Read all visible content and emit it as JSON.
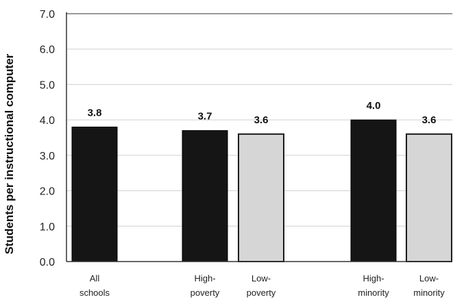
{
  "chart_data": {
    "type": "bar",
    "ylabel": "Students per instructional computer",
    "ylim": [
      0,
      7
    ],
    "yticks": [
      "0.0",
      "1.0",
      "2.0",
      "3.0",
      "4.0",
      "5.0",
      "6.0",
      "7.0"
    ],
    "grid": true,
    "legend": "none",
    "categories": [
      [
        "All",
        "schools"
      ],
      [
        "High-",
        "poverty"
      ],
      [
        "Low-",
        "poverty"
      ],
      [
        "High-",
        "minority"
      ],
      [
        "Low-",
        "minority"
      ]
    ],
    "values": [
      3.8,
      3.7,
      3.6,
      4.0,
      3.6
    ],
    "value_labels": [
      "3.8",
      "3.7",
      "3.6",
      "4.0",
      "3.6"
    ],
    "bar_colors": [
      "#151515",
      "#151515",
      "#d6d6d6",
      "#151515",
      "#d6d6d6"
    ],
    "axis_color": "#333333",
    "grid_color": "#cfcfcf"
  }
}
